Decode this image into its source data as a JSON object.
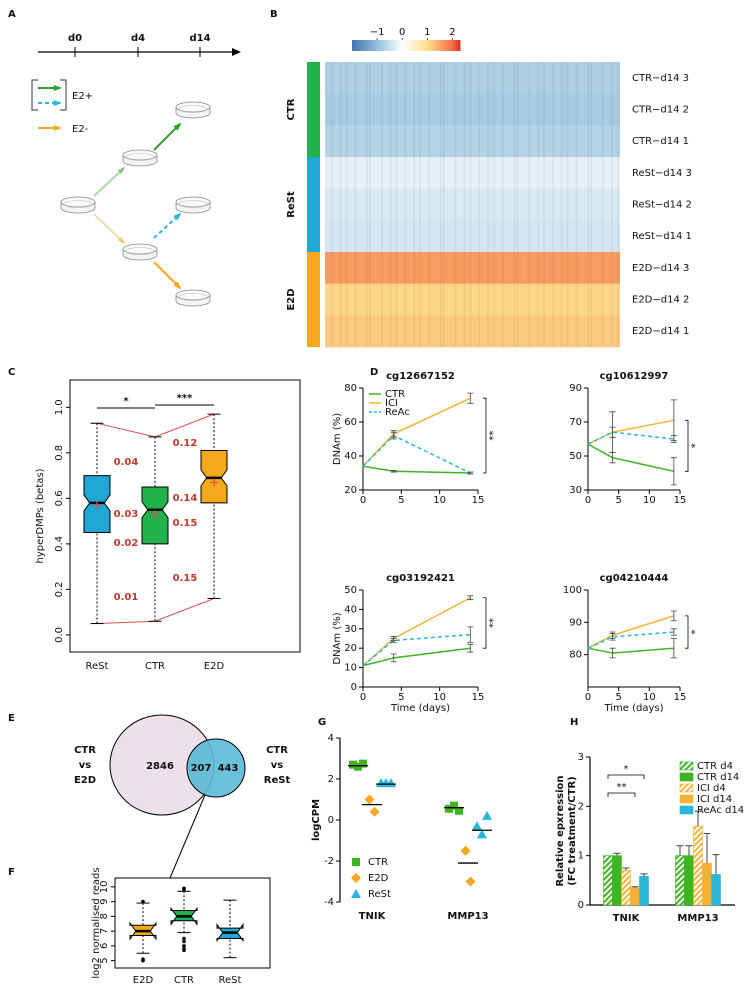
{
  "chart_data": [
    {
      "type": "timeline",
      "panel": "A",
      "ticks": [
        "d0",
        "d4",
        "d14"
      ],
      "legend": [
        {
          "name": "E2+",
          "colors": [
            "#2ca02c",
            "#29b6d8"
          ]
        },
        {
          "name": "E2-",
          "color": "#f5a623"
        }
      ]
    },
    {
      "type": "heatmap",
      "panel": "B",
      "clim": [
        -2,
        2.3
      ],
      "cticks": [
        {
          "value": -1,
          "label": "−1"
        },
        0,
        1,
        2
      ],
      "groups": [
        {
          "name": "CTR",
          "color": "#22b24c"
        },
        {
          "name": "ReSt",
          "color": "#1fa8d6"
        },
        {
          "name": "E2D",
          "color": "#f6a81c"
        }
      ],
      "rows": [
        "CTR−d14 3",
        "CTR−d14 2",
        "CTR−d14 1",
        "ReSt−d14 3",
        "ReSt−d14 2",
        "ReSt−d14 1",
        "E2D−d14 3",
        "E2D−d14 2",
        "E2D−d14 1"
      ],
      "values": [
        -0.75,
        -0.8,
        -0.7,
        -0.25,
        -0.35,
        -0.4,
        1.6,
        1.1,
        1.2
      ]
    },
    {
      "type": "box",
      "panel": "C",
      "ylabel": "hyperDMPs (betas)",
      "categories": [
        "ReSt",
        "CTR",
        "E2D"
      ],
      "colors": [
        "#1fa8d6",
        "#22b24c",
        "#f6a81c"
      ],
      "ylim": [
        -0.075,
        1.12
      ],
      "yticks": [
        {
          "value": 0,
          "label": "0.0"
        },
        0.2,
        0.4,
        0.6,
        0.8,
        {
          "value": 1,
          "label": "1.0"
        }
      ],
      "whislo": [
        0.05,
        0.06,
        0.16
      ],
      "q1": [
        0.45,
        0.4,
        0.58
      ],
      "median": [
        0.58,
        0.55,
        0.69
      ],
      "q3": [
        0.7,
        0.65,
        0.81
      ],
      "whishi": [
        0.93,
        0.87,
        0.97
      ],
      "means": [
        0.57,
        0.53,
        0.67
      ],
      "significance": [
        "*",
        "***"
      ],
      "annotations": [
        0.04,
        0.03,
        0.02,
        0.01,
        0.12,
        0.14,
        0.15,
        0.15
      ]
    },
    {
      "type": "line",
      "panel": "D",
      "title": "cg12667152",
      "ylabel": "DNAm (%)",
      "x": [
        0,
        4,
        14
      ],
      "xlim": [
        0,
        15
      ],
      "xticks": [
        0,
        5,
        10,
        15
      ],
      "ylim": [
        20,
        80
      ],
      "yticks": [
        20,
        40,
        60,
        80
      ],
      "significance": "**",
      "legend": true,
      "series": [
        {
          "name": "CTR",
          "color": "#3cb521",
          "values": [
            34,
            31,
            30
          ],
          "errors": [
            0,
            0.5,
            0.5
          ]
        },
        {
          "name": "ICI",
          "color": "#f5b335",
          "values": [
            34,
            53,
            74
          ],
          "errors": [
            0,
            2,
            3
          ]
        },
        {
          "name": "ReAc",
          "color": "#29b6d8",
          "dash": true,
          "values": [
            34,
            52,
            30
          ],
          "errors": [
            0,
            2,
            0.5
          ]
        }
      ]
    },
    {
      "type": "line",
      "title": "cg10612997",
      "x": [
        0,
        4,
        14
      ],
      "xlim": [
        0,
        15
      ],
      "xticks": [
        0,
        5,
        10,
        15
      ],
      "ylim": [
        30,
        90
      ],
      "yticks": [
        30,
        50,
        70,
        90
      ],
      "significance": "*",
      "series": [
        {
          "color": "#3cb521",
          "values": [
            57,
            49,
            41
          ],
          "errors": [
            0,
            3,
            8
          ]
        },
        {
          "color": "#f5b335",
          "values": [
            57,
            64,
            71
          ],
          "errors": [
            0,
            3,
            12
          ]
        },
        {
          "color": "#29b6d8",
          "dash": true,
          "values": [
            57,
            64,
            60
          ],
          "errors": [
            0,
            12,
            2
          ]
        }
      ]
    },
    {
      "type": "line",
      "title": "cg03192421",
      "ylabel": "DNAm (%)",
      "xlabel": "Time (days)",
      "x": [
        0,
        4,
        14
      ],
      "xlim": [
        0,
        15
      ],
      "xticks": [
        0,
        5,
        10,
        15
      ],
      "ylim": [
        0,
        50
      ],
      "yticks": [
        0,
        10,
        20,
        30,
        40,
        50
      ],
      "significance": "**",
      "series": [
        {
          "color": "#3cb521",
          "values": [
            11,
            15,
            20
          ],
          "errors": [
            0,
            2,
            2
          ]
        },
        {
          "color": "#f5b335",
          "values": [
            11,
            25,
            46
          ],
          "errors": [
            0,
            1,
            1
          ]
        },
        {
          "color": "#29b6d8",
          "dash": true,
          "values": [
            11,
            24,
            27
          ],
          "errors": [
            0,
            1,
            4
          ]
        }
      ]
    },
    {
      "type": "line",
      "title": "cg04210444",
      "xlabel": "Time (days)",
      "x": [
        0,
        4,
        14
      ],
      "xlim": [
        0,
        15
      ],
      "xticks": [
        0,
        5,
        10,
        15
      ],
      "ylim": [
        70,
        100
      ],
      "yticks": [
        80,
        90,
        100
      ],
      "significance": "*",
      "series": [
        {
          "color": "#3cb521",
          "values": [
            82,
            80.5,
            82
          ],
          "errors": [
            0,
            1.5,
            3
          ]
        },
        {
          "color": "#f5b335",
          "values": [
            82,
            86,
            92
          ],
          "errors": [
            0,
            1,
            1.5
          ]
        },
        {
          "color": "#29b6d8",
          "dash": true,
          "values": [
            82,
            85.5,
            87
          ],
          "errors": [
            0,
            1,
            1
          ]
        }
      ]
    },
    {
      "type": "venn",
      "panel": "E",
      "sets": [
        {
          "label": [
            "CTR",
            "vs",
            "E2D"
          ],
          "color": "#ece0ea"
        },
        {
          "label": [
            "CTR",
            "vs",
            "ReSt"
          ],
          "color": "#5bbad5"
        }
      ],
      "values": [
        2846,
        207,
        443
      ]
    },
    {
      "type": "box",
      "panel": "F",
      "ylabel": "log2 normalised reads",
      "categories": [
        "E2D",
        "CTR",
        "ReSt"
      ],
      "colors": [
        "#f6a81c",
        "#22b24c",
        "#1fa8d6"
      ],
      "ylim": [
        4.5,
        10.6
      ],
      "yticks": [
        5,
        6,
        7,
        8,
        9,
        10
      ],
      "whislo": [
        5.5,
        6.9,
        5.2
      ],
      "q1": [
        6.7,
        7.7,
        6.5
      ],
      "median": [
        7.0,
        8.0,
        6.9
      ],
      "q3": [
        7.4,
        8.4,
        7.2
      ],
      "whishi": [
        8.9,
        9.7,
        9.1
      ],
      "outliers": [
        [
          9.0,
          5.1,
          5.0
        ],
        [
          9.8,
          9.9,
          6.5,
          6.3,
          6.0,
          5.8,
          5.7
        ],
        []
      ]
    },
    {
      "type": "dot",
      "panel": "G",
      "ylabel": "logCPM",
      "categories": [
        "TNIK",
        "MMP13"
      ],
      "ylim": [
        -4,
        4
      ],
      "yticks": [
        -4,
        -2,
        0,
        2,
        4
      ],
      "series": [
        {
          "name": "CTR",
          "color": "#3cb521",
          "marker": "square",
          "values": [
            [
              2.7,
              2.6,
              2.75
            ],
            [
              0.55,
              0.7,
              0.45
            ]
          ],
          "means": [
            2.65,
            0.6
          ]
        },
        {
          "name": "E2D",
          "color": "#f5a623",
          "marker": "diamond",
          "values": [
            [
              1.0,
              0.4
            ],
            [
              -1.5,
              -3.0
            ]
          ],
          "means": [
            0.75,
            -2.1
          ]
        },
        {
          "name": "ReSt",
          "color": "#29b6d8",
          "marker": "triangle",
          "values": [
            [
              1.8,
              1.8,
              1.8
            ],
            [
              -0.3,
              -0.7,
              0.2
            ]
          ],
          "means": [
            1.75,
            -0.5
          ]
        }
      ]
    },
    {
      "type": "bar",
      "panel": "H",
      "ylabel": [
        "Relative epxression",
        "(FC treatment/CTR)"
      ],
      "categories": [
        "TNIK",
        "MMP13"
      ],
      "ylim": [
        0,
        3
      ],
      "yticks": [
        0,
        1,
        2,
        3
      ],
      "significance": [
        "*",
        "**"
      ],
      "series": [
        {
          "name": "CTR d4",
          "color": "#3cb521",
          "hatch": true,
          "values": [
            1,
            1
          ],
          "errors": [
            0,
            0.2
          ]
        },
        {
          "name": "CTR d14",
          "color": "#3cb521",
          "values": [
            1,
            1
          ],
          "errors": [
            0.05,
            0.2
          ]
        },
        {
          "name": "ICI d4",
          "color": "#f5b335",
          "hatch": true,
          "values": [
            0.7,
            1.6
          ],
          "errors": [
            0.05,
            0.3
          ]
        },
        {
          "name": "ICI d14",
          "color": "#f5b335",
          "values": [
            0.35,
            0.85
          ],
          "errors": [
            0.02,
            0.6
          ]
        },
        {
          "name": "ReAc d14",
          "color": "#29b6d8",
          "values": [
            0.58,
            0.62
          ],
          "errors": [
            0.05,
            0.4
          ]
        }
      ]
    }
  ]
}
